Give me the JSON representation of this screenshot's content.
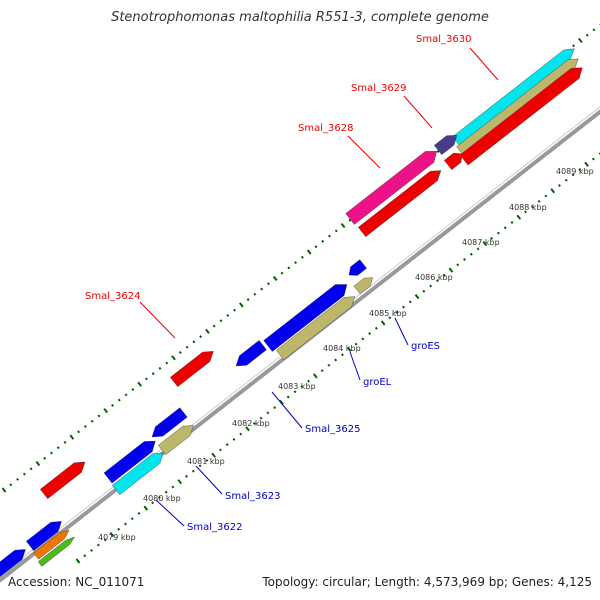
{
  "title": "Stenotrophomonas maltophilia R551-3, complete genome",
  "footer": {
    "accession": "Accession: NC_011071",
    "topology": "Topology: circular; Length: 4,573,969 bp; Genes: 4,125"
  },
  "colors": {
    "red": "#ee0000",
    "blue": "#0000ee",
    "khaki": "#bdb76b",
    "cyan": "#00e5ee",
    "magenta": "#ee1289",
    "slate": "#483d8b",
    "orange": "#ee7600",
    "green": "#4cbb17",
    "backbone": "#999999",
    "tick": "#006400",
    "label_red": "#ee0000",
    "label_blue": "#0000cc"
  },
  "kbp_labels": [
    "4079 kbp",
    "4080 kbp",
    "4081 kbp",
    "4082 kbp",
    "4083 kbp",
    "4084 kbp",
    "4085 kbp",
    "4086 kbp",
    "4087 kbp",
    "4088 kbp",
    "4089 kbp"
  ],
  "gene_labels": {
    "smal_3630": "Smal_3630",
    "smal_3629": "Smal_3629",
    "smal_3628": "Smal_3628",
    "smal_3624": "Smal_3624",
    "groES": "groES",
    "groEL": "groEL",
    "smal_3625": "Smal_3625",
    "smal_3623": "Smal_3623",
    "smal_3622": "Smal_3622"
  }
}
